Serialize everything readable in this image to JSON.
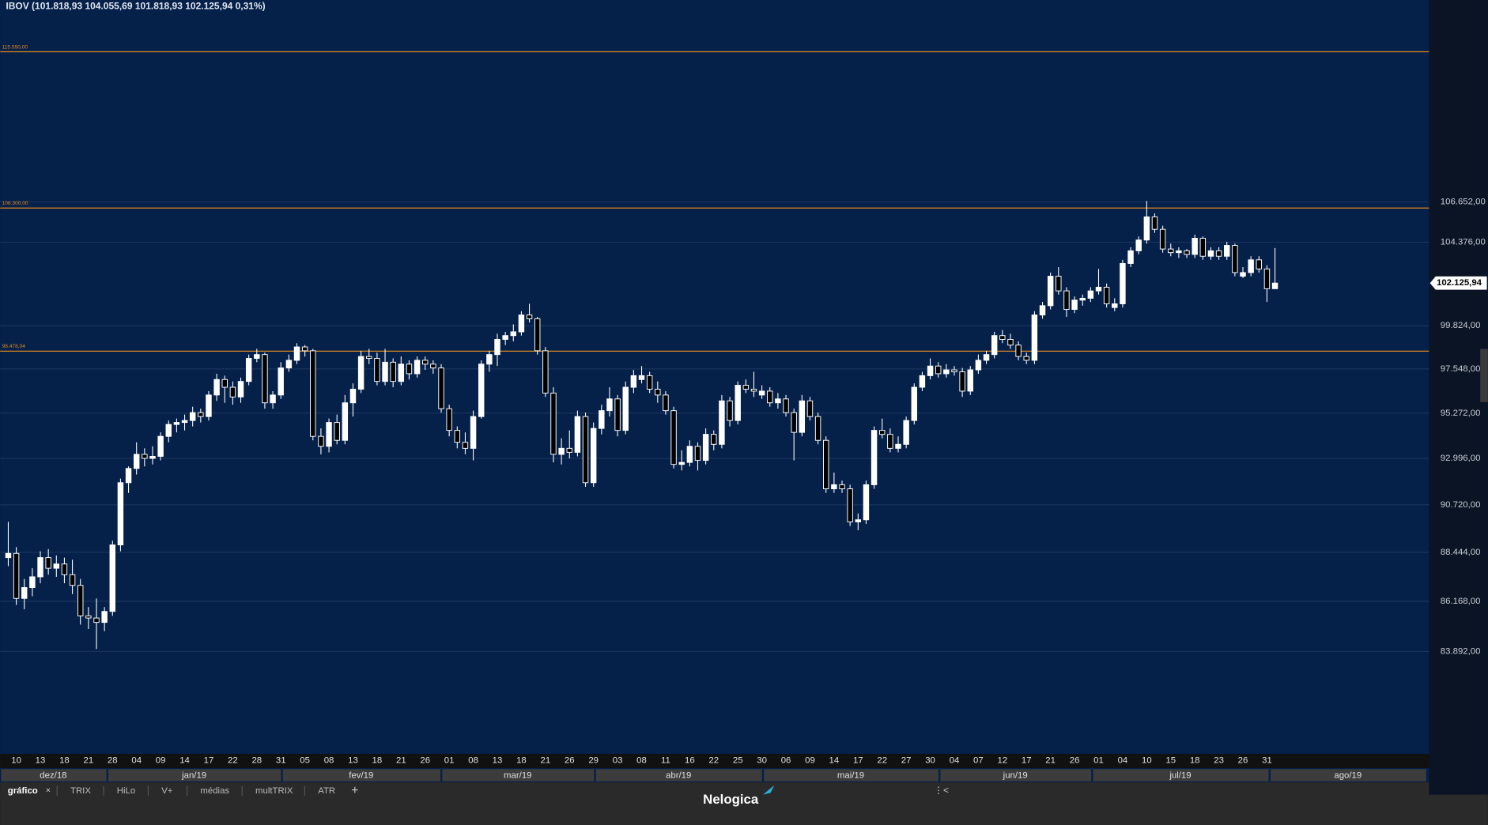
{
  "chart_data": {
    "type": "candlestick",
    "title": "IBOV (101.818,93  104.055,69  101.818,93  102.125,94  0,31%)",
    "log": true,
    "ylim": [
      79424,
      118790
    ],
    "yticks": [
      {
        "value": 106652,
        "label": "106.652,00"
      },
      {
        "value": 104376,
        "label": "104.376,00"
      },
      {
        "value": 99824,
        "label": "99.824,00"
      },
      {
        "value": 97548,
        "label": "97.548,00"
      },
      {
        "value": 95272,
        "label": "95.272,00"
      },
      {
        "value": 92996,
        "label": "92.996,00"
      },
      {
        "value": 90720,
        "label": "90.720,00"
      },
      {
        "value": 88444,
        "label": "88.444,00"
      },
      {
        "value": 86168,
        "label": "86.168,00"
      },
      {
        "value": 83892,
        "label": "83.892,00"
      }
    ],
    "grid": true,
    "up_color": "#ffffff",
    "down_color": "#000000",
    "level_color": "#e08a1e",
    "levels": [
      {
        "value": 115550,
        "label": "115.550,00"
      },
      {
        "value": 106300,
        "label": "106.300,00"
      },
      {
        "value": 98478.04,
        "label": "98.478,04"
      }
    ],
    "last_price": {
      "value": 102125.94,
      "label": "102.125,94"
    },
    "months": [
      "dez/18",
      "jan/19",
      "fev/19",
      "mar/19",
      "abr/19",
      "mai/19",
      "jun/19",
      "jul/19",
      "ago/19"
    ],
    "categories": [
      null,
      "10",
      null,
      null,
      "13",
      null,
      null,
      "18",
      null,
      null,
      "21",
      null,
      null,
      "28",
      null,
      null,
      "04",
      null,
      null,
      "09",
      null,
      null,
      "14",
      null,
      null,
      "17",
      null,
      null,
      "22",
      null,
      null,
      "28",
      null,
      null,
      "31",
      null,
      null,
      "05",
      null,
      null,
      "08",
      null,
      null,
      "13",
      null,
      null,
      "18",
      null,
      null,
      "21",
      null,
      null,
      "26",
      null,
      null,
      "01",
      null,
      null,
      "08",
      null,
      null,
      "13",
      null,
      null,
      "18",
      null,
      null,
      "21",
      null,
      null,
      "26",
      null,
      null,
      "29",
      null,
      null,
      "03",
      null,
      null,
      "08",
      null,
      null,
      "11",
      null,
      null,
      "16",
      null,
      null,
      "22",
      null,
      null,
      "25",
      null,
      null,
      "30",
      null,
      null,
      "06",
      null,
      null,
      "09",
      null,
      null,
      "14",
      null,
      null,
      "17",
      null,
      null,
      "22",
      null,
      null,
      "27",
      null,
      null,
      "30",
      null,
      null,
      "04",
      null,
      null,
      "07",
      null,
      null,
      "12",
      null,
      null,
      "17",
      null,
      null,
      "21",
      null,
      null,
      "26",
      null,
      null,
      "01",
      null,
      null,
      "04",
      null,
      null,
      "10",
      null,
      null,
      "15",
      null,
      null,
      "18",
      null,
      null,
      "23",
      null,
      null,
      "26",
      null,
      null,
      "31",
      null
    ],
    "candles": [
      [
        88200,
        89900,
        87800,
        88400
      ],
      [
        88400,
        88700,
        86000,
        86300
      ],
      [
        86300,
        87200,
        85800,
        86800
      ],
      [
        86800,
        87700,
        86400,
        87300
      ],
      [
        87300,
        88500,
        87000,
        88200
      ],
      [
        88200,
        88600,
        87400,
        87700
      ],
      [
        87700,
        88300,
        87300,
        87900
      ],
      [
        87900,
        88200,
        87000,
        87400
      ],
      [
        87400,
        88100,
        86500,
        86900
      ],
      [
        86900,
        87200,
        85100,
        85500
      ],
      [
        85500,
        85900,
        84900,
        85400
      ],
      [
        85400,
        86300,
        84000,
        85200
      ],
      [
        85200,
        85900,
        84800,
        85700
      ],
      [
        85700,
        89000,
        85500,
        88800
      ],
      [
        88800,
        92000,
        88500,
        91800
      ],
      [
        91800,
        92600,
        91300,
        92500
      ],
      [
        92500,
        93800,
        92200,
        93200
      ],
      [
        93200,
        93500,
        92600,
        93000
      ],
      [
        93000,
        93600,
        92700,
        93100
      ],
      [
        93100,
        94300,
        92900,
        94100
      ],
      [
        94100,
        94900,
        93800,
        94700
      ],
      [
        94700,
        95000,
        94300,
        94800
      ],
      [
        94800,
        95200,
        94400,
        94900
      ],
      [
        94900,
        95600,
        94600,
        95300
      ],
      [
        95300,
        95500,
        94800,
        95100
      ],
      [
        95100,
        96400,
        94900,
        96200
      ],
      [
        96200,
        97300,
        95900,
        97000
      ],
      [
        97000,
        97200,
        95800,
        96600
      ],
      [
        96600,
        96900,
        95700,
        96100
      ],
      [
        96100,
        97100,
        95800,
        96900
      ],
      [
        96900,
        98300,
        96700,
        98100
      ],
      [
        98100,
        98600,
        97900,
        98300
      ],
      [
        98300,
        98400,
        95500,
        95800
      ],
      [
        95800,
        96400,
        95500,
        96200
      ],
      [
        96200,
        97900,
        96000,
        97600
      ],
      [
        97600,
        98300,
        97400,
        98000
      ],
      [
        98000,
        98900,
        97800,
        98700
      ],
      [
        98700,
        98800,
        98200,
        98500
      ],
      [
        98500,
        98600,
        93900,
        94100
      ],
      [
        94100,
        94500,
        93200,
        93600
      ],
      [
        93600,
        95000,
        93300,
        94800
      ],
      [
        94800,
        95200,
        93700,
        93900
      ],
      [
        93900,
        96200,
        93700,
        95800
      ],
      [
        95800,
        96800,
        95100,
        96500
      ],
      [
        96500,
        98500,
        96300,
        98200
      ],
      [
        98200,
        98600,
        97800,
        98100
      ],
      [
        98100,
        98400,
        96700,
        96900
      ],
      [
        96900,
        98600,
        96700,
        97900
      ],
      [
        97900,
        98100,
        96600,
        96900
      ],
      [
        96900,
        98200,
        96700,
        97800
      ],
      [
        97800,
        98000,
        97000,
        97300
      ],
      [
        97300,
        98200,
        97100,
        98000
      ],
      [
        98000,
        98200,
        97500,
        97800
      ],
      [
        97800,
        98000,
        97300,
        97600
      ],
      [
        97600,
        97800,
        95300,
        95500
      ],
      [
        95500,
        95700,
        94100,
        94400
      ],
      [
        94400,
        94600,
        93500,
        93800
      ],
      [
        93800,
        94300,
        93200,
        93500
      ],
      [
        93500,
        95400,
        92900,
        95100
      ],
      [
        95100,
        98000,
        95000,
        97800
      ],
      [
        97800,
        98500,
        97400,
        98300
      ],
      [
        98300,
        99400,
        97700,
        99100
      ],
      [
        99100,
        99500,
        98800,
        99300
      ],
      [
        99300,
        99900,
        99000,
        99500
      ],
      [
        99500,
        100600,
        99300,
        100400
      ],
      [
        100400,
        101000,
        100000,
        100200
      ],
      [
        100200,
        100300,
        98300,
        98500
      ],
      [
        98500,
        98700,
        96100,
        96300
      ],
      [
        96300,
        96600,
        92800,
        93200
      ],
      [
        93200,
        94000,
        92700,
        93500
      ],
      [
        93500,
        94400,
        93000,
        93300
      ],
      [
        93300,
        95400,
        93100,
        95100
      ],
      [
        95100,
        95300,
        91600,
        91800
      ],
      [
        91800,
        94800,
        91600,
        94500
      ],
      [
        94500,
        95700,
        94200,
        95400
      ],
      [
        95400,
        96600,
        95100,
        96000
      ],
      [
        96000,
        96200,
        94100,
        94400
      ],
      [
        94400,
        96900,
        94200,
        96600
      ],
      [
        96600,
        97500,
        96300,
        97200
      ],
      [
        97000,
        97700,
        96800,
        97200
      ],
      [
        97200,
        97400,
        96300,
        96500
      ],
      [
        96500,
        96900,
        95800,
        96200
      ],
      [
        96200,
        96400,
        95200,
        95400
      ],
      [
        95400,
        95600,
        92500,
        92700
      ],
      [
        92700,
        93400,
        92400,
        92800
      ],
      [
        92800,
        93900,
        92600,
        93600
      ],
      [
        93600,
        93800,
        92400,
        92900
      ],
      [
        92900,
        94500,
        92700,
        94200
      ],
      [
        94200,
        94400,
        93400,
        93700
      ],
      [
        93700,
        96200,
        93500,
        95900
      ],
      [
        95900,
        96100,
        94600,
        94900
      ],
      [
        94900,
        96900,
        94700,
        96700
      ],
      [
        96700,
        97000,
        96300,
        96500
      ],
      [
        96500,
        97400,
        96100,
        96400
      ],
      [
        96200,
        96700,
        96000,
        96400
      ],
      [
        96400,
        96600,
        95600,
        95800
      ],
      [
        95800,
        96300,
        95500,
        96000
      ],
      [
        96000,
        96200,
        95100,
        95300
      ],
      [
        95300,
        95500,
        92900,
        94300
      ],
      [
        94300,
        96200,
        94100,
        95900
      ],
      [
        95900,
        96100,
        94900,
        95100
      ],
      [
        95100,
        95300,
        93700,
        93900
      ],
      [
        93900,
        94100,
        91300,
        91500
      ],
      [
        91500,
        92300,
        91300,
        91700
      ],
      [
        91700,
        91900,
        91300,
        91500
      ],
      [
        91500,
        91700,
        89700,
        89900
      ],
      [
        89900,
        90300,
        89500,
        90000
      ],
      [
        90000,
        91900,
        89800,
        91700
      ],
      [
        91700,
        94600,
        91500,
        94400
      ],
      [
        94400,
        95000,
        94000,
        94200
      ],
      [
        94200,
        94500,
        93300,
        93500
      ],
      [
        93500,
        94100,
        93300,
        93700
      ],
      [
        93700,
        95100,
        93500,
        94900
      ],
      [
        94900,
        96800,
        94700,
        96600
      ],
      [
        96600,
        97400,
        96400,
        97200
      ],
      [
        97200,
        98100,
        97000,
        97700
      ],
      [
        97700,
        97900,
        97100,
        97300
      ],
      [
        97300,
        97800,
        97100,
        97500
      ],
      [
        97500,
        97700,
        97200,
        97400
      ],
      [
        97400,
        97600,
        96100,
        96400
      ],
      [
        96400,
        97700,
        96200,
        97500
      ],
      [
        97500,
        98300,
        97300,
        98000
      ],
      [
        98000,
        98500,
        97800,
        98300
      ],
      [
        98300,
        99500,
        98100,
        99300
      ],
      [
        99300,
        99600,
        98900,
        99100
      ],
      [
        99100,
        99400,
        98600,
        98800
      ],
      [
        98800,
        99000,
        98000,
        98200
      ],
      [
        98200,
        98400,
        97800,
        98000
      ],
      [
        98000,
        100600,
        97800,
        100400
      ],
      [
        100400,
        101100,
        100200,
        100900
      ],
      [
        100900,
        102700,
        100700,
        102500
      ],
      [
        102500,
        103000,
        101500,
        101700
      ],
      [
        101700,
        101900,
        100300,
        100700
      ],
      [
        100700,
        101400,
        100500,
        101200
      ],
      [
        101200,
        101500,
        100900,
        101300
      ],
      [
        101300,
        101900,
        101100,
        101700
      ],
      [
        101700,
        102900,
        101500,
        101900
      ],
      [
        101900,
        102100,
        100800,
        101000
      ],
      [
        100800,
        101300,
        100600,
        101000
      ],
      [
        101000,
        103400,
        100800,
        103200
      ],
      [
        103200,
        104100,
        103000,
        103900
      ],
      [
        103900,
        104700,
        103700,
        104500
      ],
      [
        104500,
        106700,
        104300,
        105800
      ],
      [
        105800,
        106000,
        104900,
        105100
      ],
      [
        105100,
        105300,
        103800,
        104000
      ],
      [
        104000,
        104300,
        103600,
        103800
      ],
      [
        103800,
        104100,
        103500,
        103900
      ],
      [
        103900,
        104000,
        103500,
        103700
      ],
      [
        103700,
        104800,
        103500,
        104600
      ],
      [
        104600,
        104700,
        103400,
        103600
      ],
      [
        103600,
        104100,
        103400,
        103900
      ],
      [
        103900,
        104100,
        103400,
        103600
      ],
      [
        103600,
        104400,
        103400,
        104200
      ],
      [
        104200,
        104300,
        102500,
        102700
      ],
      [
        102500,
        103000,
        102400,
        102700
      ],
      [
        102700,
        103600,
        102500,
        103400
      ],
      [
        103400,
        103600,
        102700,
        102900
      ],
      [
        102900,
        103100,
        101100,
        101819
      ],
      [
        101818.93,
        104055.69,
        101818.93,
        102125.94
      ]
    ]
  },
  "tabs": [
    "gráfico",
    "TRIX",
    "HiLo",
    "V+",
    "médias",
    "multTRIX",
    "ATR"
  ],
  "footer": {
    "logo": "Nelogica"
  }
}
